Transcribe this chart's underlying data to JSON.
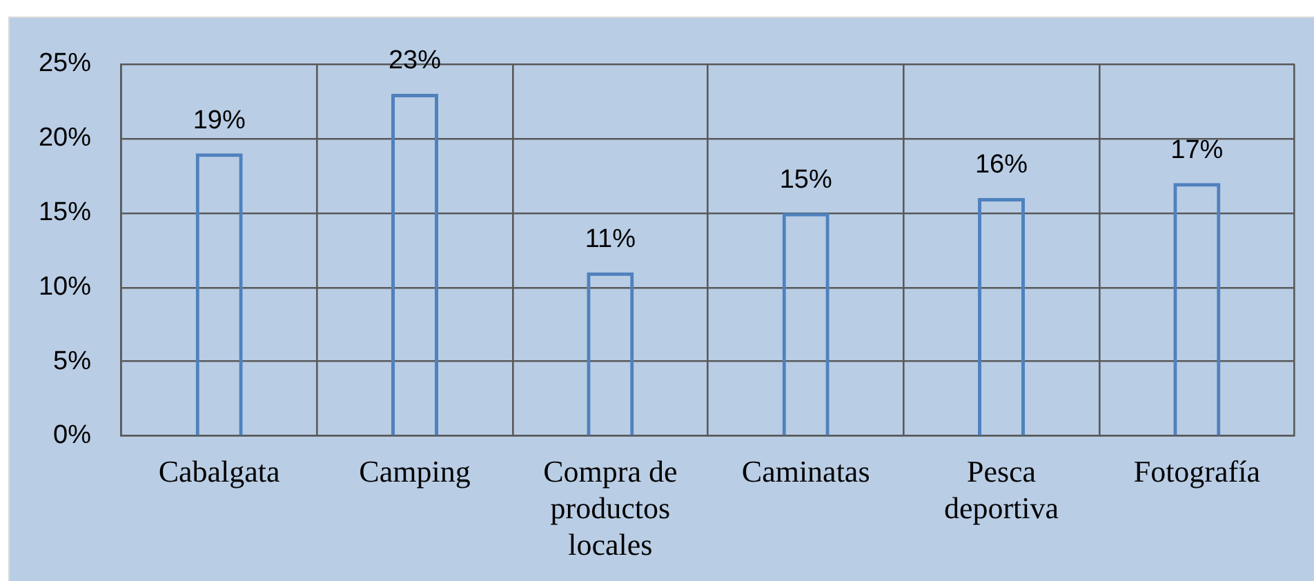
{
  "chart_data": {
    "type": "bar",
    "categories": [
      "Cabalgata",
      "Camping",
      "Compra de productos locales",
      "Caminatas",
      "Pesca deportiva",
      "Fotografía"
    ],
    "values": [
      19,
      23,
      11,
      15,
      16,
      17
    ],
    "value_labels": [
      "19%",
      "23%",
      "11%",
      "15%",
      "16%",
      "17%"
    ],
    "color": "#4f81bd",
    "ylim": [
      0,
      25
    ],
    "yticks": [
      {
        "value": 0,
        "label": "0%"
      },
      {
        "value": 5,
        "label": "5%"
      },
      {
        "value": 10,
        "label": "10%"
      },
      {
        "value": 15,
        "label": "15%"
      },
      {
        "value": 20,
        "label": "20%"
      },
      {
        "value": 25,
        "label": "25%"
      }
    ],
    "grid": true
  }
}
